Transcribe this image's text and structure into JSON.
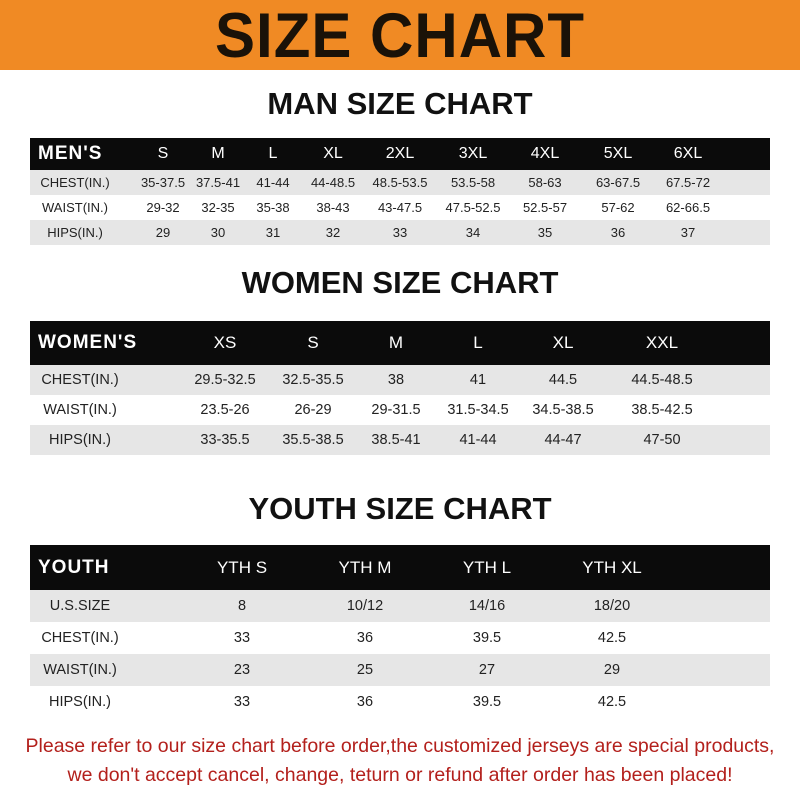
{
  "banner_title": "SIZE CHART",
  "colors": {
    "banner": "#f08a24",
    "header_row": "#0b0b0b",
    "stripe": "#e6e6e6",
    "notice": "#b3201c"
  },
  "men": {
    "title": "MAN SIZE CHART",
    "header": [
      "MEN'S",
      "S",
      "M",
      "L",
      "XL",
      "2XL",
      "3XL",
      "4XL",
      "5XL",
      "6XL"
    ],
    "rows": [
      [
        "CHEST(IN.)",
        "35-37.5",
        "37.5-41",
        "41-44",
        "44-48.5",
        "48.5-53.5",
        "53.5-58",
        "58-63",
        "63-67.5",
        "67.5-72"
      ],
      [
        "WAIST(IN.)",
        "29-32",
        "32-35",
        "35-38",
        "38-43",
        "43-47.5",
        "47.5-52.5",
        "52.5-57",
        "57-62",
        "62-66.5"
      ],
      [
        "HIPS(IN.)",
        "29",
        "30",
        "31",
        "32",
        "33",
        "34",
        "35",
        "36",
        "37"
      ]
    ]
  },
  "women": {
    "title": "WOMEN SIZE CHART",
    "header": [
      "WOMEN'S",
      "XS",
      "S",
      "M",
      "L",
      "XL",
      "XXL"
    ],
    "rows": [
      [
        "CHEST(IN.)",
        "29.5-32.5",
        "32.5-35.5",
        "38",
        "41",
        "44.5",
        "44.5-48.5"
      ],
      [
        "WAIST(IN.)",
        "23.5-26",
        "26-29",
        "29-31.5",
        "31.5-34.5",
        "34.5-38.5",
        "38.5-42.5"
      ],
      [
        "HIPS(IN.)",
        "33-35.5",
        "35.5-38.5",
        "38.5-41",
        "41-44",
        "44-47",
        "47-50"
      ]
    ]
  },
  "youth": {
    "title": "YOUTH SIZE CHART",
    "header": [
      "YOUTH",
      "YTH S",
      "YTH M",
      "YTH L",
      "YTH XL"
    ],
    "rows": [
      [
        "U.S.SIZE",
        "8",
        "10/12",
        "14/16",
        "18/20"
      ],
      [
        "CHEST(IN.)",
        "33",
        "36",
        "39.5",
        "42.5"
      ],
      [
        "WAIST(IN.)",
        "23",
        "25",
        "27",
        "29"
      ],
      [
        "HIPS(IN.)",
        "33",
        "36",
        "39.5",
        "42.5"
      ]
    ]
  },
  "notice": {
    "line1": "Please refer to our size chart before order,the customized jerseys are special products,",
    "line2": "we don't accept cancel, change, teturn or refund after order has been placed!"
  }
}
